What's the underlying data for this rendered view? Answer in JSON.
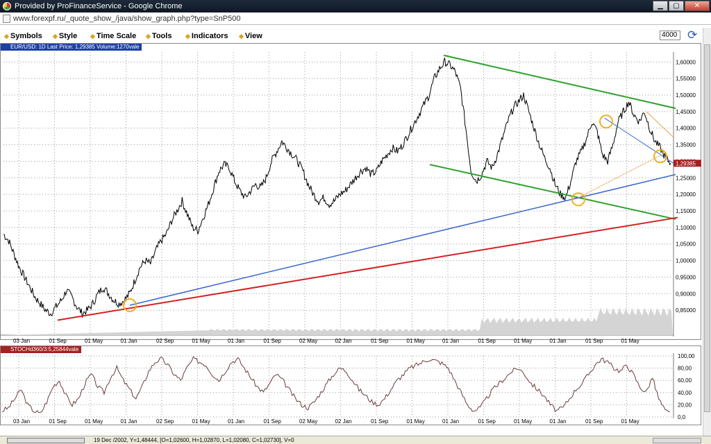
{
  "window": {
    "title": "Provided by ProFinanceService - Google Chrome"
  },
  "address": {
    "url": "www.forexpf.ru/_quote_show_/java/show_graph.php?type=SnP500"
  },
  "menu": [
    "Symbols",
    "Style",
    "Time Scale",
    "Tools",
    "Indicators",
    "View"
  ],
  "zoom_value": "4000",
  "main_chart": {
    "header": "EUR/USD: 1D Last Price: 1,29385 Volume:1270vale",
    "last_price": "1,29385",
    "y_ticks": [
      "1,60000",
      "1,55000",
      "1,50000",
      "1,45000",
      "1,40000",
      "1,35000",
      "1,30000",
      "1,25000",
      "1,20000",
      "1,15000",
      "1,10000",
      "1,05000",
      "1,00000",
      "0,95000",
      "0,90000",
      "0,85000"
    ],
    "x_ticks": [
      "03 Jan",
      "01 Sep",
      "01 May",
      "01 Jan",
      "02 Sep",
      "01 May",
      "01 Jan",
      "01 Sep",
      "02 May",
      "02 Jan",
      "01 Sep",
      "01 May",
      "01 Jan",
      "01 Sep",
      "01 May",
      "01 Jan",
      "01 Sep",
      "01 May"
    ],
    "colors": {
      "green": "#2ca02c",
      "blue": "#3a66cc",
      "red": "#d42020",
      "orange": "#e8a84a",
      "circle": "#f0b020"
    }
  },
  "stoch_chart": {
    "header": "STOCHd360/3:5,25844vale",
    "y_ticks": [
      "100,00",
      "80,00",
      "60,00",
      "40,00",
      "20,00",
      "0,0"
    ],
    "x_ticks": [
      "03 Jan",
      "01 Sep",
      "01 May",
      "01 Jan",
      "02 Sep",
      "01 May",
      "01 Jan",
      "01 Sep",
      "02 May",
      "02 Jan",
      "01 Sep",
      "01 May",
      "01 Jan",
      "01 Sep",
      "01 May",
      "01 Jan",
      "01 Sep",
      "01 May"
    ]
  },
  "status": {
    "text": "19 Dec /2002, Y=1,48444, [O=1,02600, H=1,02870, L=1,02080, C=1,02730], V=0"
  },
  "chart_data": {
    "type": "line",
    "title": "EUR/USD: 1D Last Price: 1,29385 Volume:1270vale",
    "ylim": [
      0.8,
      1.63
    ],
    "price_series": [
      1.08,
      1.06,
      1.02,
      0.98,
      0.95,
      0.92,
      0.89,
      0.87,
      0.85,
      0.84,
      0.86,
      0.88,
      0.91,
      0.89,
      0.86,
      0.84,
      0.85,
      0.87,
      0.9,
      0.92,
      0.9,
      0.88,
      0.87,
      0.88,
      0.9,
      0.94,
      0.98,
      1.0,
      0.99,
      1.03,
      1.06,
      1.08,
      1.12,
      1.15,
      1.18,
      1.14,
      1.1,
      1.09,
      1.13,
      1.17,
      1.22,
      1.27,
      1.29,
      1.28,
      1.24,
      1.21,
      1.19,
      1.21,
      1.23,
      1.22,
      1.25,
      1.3,
      1.33,
      1.36,
      1.34,
      1.32,
      1.3,
      1.27,
      1.23,
      1.2,
      1.18,
      1.19,
      1.17,
      1.18,
      1.2,
      1.21,
      1.23,
      1.25,
      1.27,
      1.28,
      1.26,
      1.27,
      1.3,
      1.32,
      1.34,
      1.33,
      1.35,
      1.38,
      1.41,
      1.44,
      1.47,
      1.5,
      1.55,
      1.58,
      1.6,
      1.59,
      1.57,
      1.52,
      1.4,
      1.27,
      1.24,
      1.26,
      1.3,
      1.28,
      1.32,
      1.37,
      1.42,
      1.46,
      1.48,
      1.5,
      1.45,
      1.4,
      1.35,
      1.31,
      1.28,
      1.23,
      1.2,
      1.19,
      1.24,
      1.3,
      1.33,
      1.37,
      1.42,
      1.39,
      1.32,
      1.3,
      1.35,
      1.42,
      1.45,
      1.48,
      1.44,
      1.42,
      1.45,
      1.4,
      1.36,
      1.34,
      1.31,
      1.294
    ],
    "stoch_series": [
      10,
      15,
      30,
      45,
      20,
      10,
      5,
      25,
      50,
      60,
      35,
      20,
      30,
      55,
      70,
      50,
      40,
      65,
      80,
      60,
      45,
      30,
      50,
      75,
      90,
      95,
      85,
      70,
      60,
      80,
      95,
      90,
      85,
      70,
      60,
      75,
      90,
      95,
      80,
      65,
      50,
      40,
      55,
      70,
      60,
      45,
      30,
      20,
      15,
      25,
      40,
      55,
      70,
      80,
      75,
      60,
      45,
      35,
      25,
      20,
      30,
      45,
      60,
      70,
      80,
      85,
      90,
      95,
      92,
      88,
      80,
      60,
      40,
      20,
      10,
      15,
      30,
      45,
      55,
      65,
      75,
      80,
      70,
      55,
      45,
      35,
      20,
      10,
      15,
      30,
      45,
      55,
      70,
      85,
      95,
      90,
      80,
      75,
      85,
      70,
      50,
      40,
      65,
      30,
      10,
      5
    ]
  }
}
